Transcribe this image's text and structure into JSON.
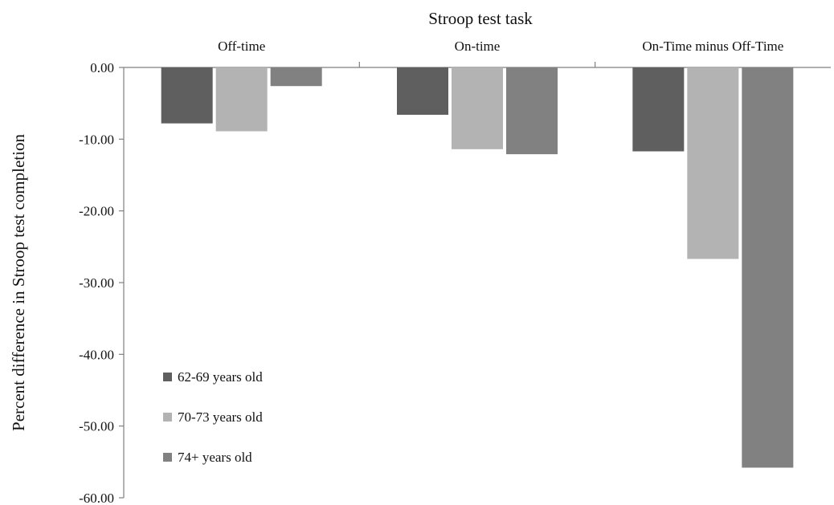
{
  "chart_data": {
    "type": "bar",
    "title": "Stroop test task",
    "xlabel": "",
    "ylabel": "Percent difference in Stroop test completion",
    "categories": [
      "Off-time",
      "On-time",
      "On-Time minus Off-Time"
    ],
    "series": [
      {
        "name": "62-69 years old",
        "color": "#5f5f5f",
        "values": [
          -7.8,
          -6.6,
          -11.7
        ]
      },
      {
        "name": "70-73 years old",
        "color": "#b3b3b3",
        "values": [
          -8.9,
          -11.4,
          -26.7
        ]
      },
      {
        "name": "74+ years old",
        "color": "#818181",
        "values": [
          -2.6,
          -12.1,
          -55.8
        ]
      }
    ],
    "yticks": [
      "0.00",
      "-10.00",
      "-20.00",
      "-30.00",
      "-40.00",
      "-50.00",
      "-60.00"
    ],
    "ylim": [
      -60,
      0
    ],
    "grid": false,
    "legend_position": "bottom-left"
  }
}
